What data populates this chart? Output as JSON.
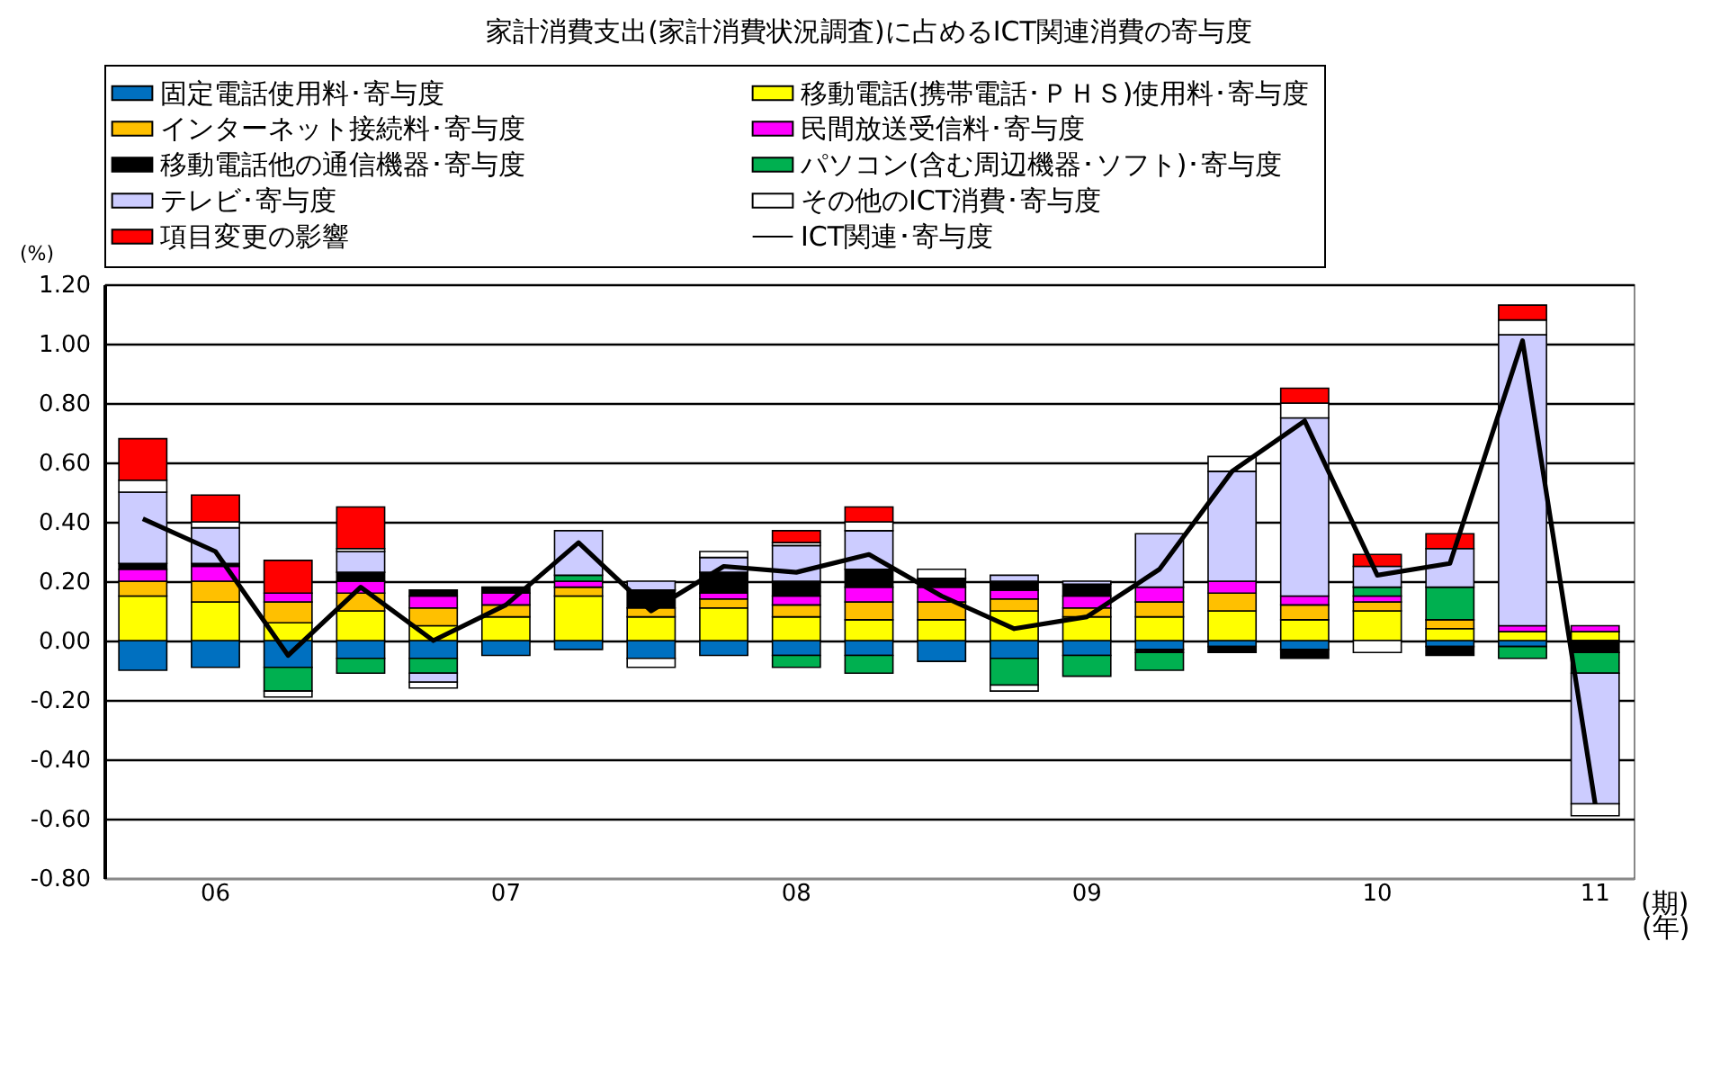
{
  "chart_data": {
    "type": "bar",
    "stacked": true,
    "title": "家計消費支出(家計消費状況調査)に占めるICT関連消費の寄与度",
    "ylabel": "(%)",
    "xlabel": "(年)",
    "annotations": [
      "(期)"
    ],
    "categories": [
      null,
      "06",
      null,
      null,
      null,
      "07",
      null,
      null,
      null,
      "08",
      null,
      null,
      null,
      "09",
      null,
      null,
      null,
      "10",
      null,
      null,
      "11"
    ],
    "ylim": [
      -0.8,
      1.2
    ],
    "yticks": [
      {
        "value": -0.8,
        "label": "-0.80"
      },
      {
        "value": -0.6,
        "label": "-0.60"
      },
      {
        "value": -0.4,
        "label": "-0.40"
      },
      {
        "value": -0.2,
        "label": "-0.20"
      },
      {
        "value": 0,
        "label": "0.00"
      },
      {
        "value": 0.2,
        "label": "0.20"
      },
      {
        "value": 0.4,
        "label": "0.40"
      },
      {
        "value": 0.6,
        "label": "0.60"
      },
      {
        "value": 0.8,
        "label": "0.80"
      },
      {
        "value": 1.0,
        "label": "1.00"
      },
      {
        "value": 1.2,
        "label": "1.20"
      }
    ],
    "grid": "y",
    "legend": "top",
    "series": [
      {
        "name": "固定電話使用料･寄与度",
        "color": "#0070c0",
        "values": [
          -0.1,
          -0.09,
          -0.09,
          -0.06,
          -0.06,
          -0.05,
          -0.03,
          -0.06,
          -0.05,
          -0.05,
          -0.05,
          -0.07,
          -0.06,
          -0.05,
          -0.03,
          -0.02,
          -0.03,
          0,
          -0.02,
          -0.02,
          0
        ]
      },
      {
        "name": "移動電話(携帯電話･ＰＨＳ)使用料･寄与度",
        "color": "#ffff00",
        "values": [
          0.15,
          0.13,
          0.06,
          0.1,
          0.05,
          0.08,
          0.15,
          0.08,
          0.11,
          0.08,
          0.07,
          0.07,
          0.1,
          0.08,
          0.08,
          0.1,
          0.07,
          0.1,
          0.04,
          0.03,
          0.03
        ]
      },
      {
        "name": "インターネット接続料･寄与度",
        "color": "#ffc000",
        "values": [
          0.05,
          0.07,
          0.07,
          0.06,
          0.06,
          0.04,
          0.03,
          0.03,
          0.03,
          0.04,
          0.06,
          0.06,
          0.04,
          0.03,
          0.05,
          0.06,
          0.05,
          0.03,
          0.03,
          0,
          0
        ]
      },
      {
        "name": "民間放送受信料･寄与度",
        "color": "#ff00ff",
        "values": [
          0.04,
          0.05,
          0.03,
          0.04,
          0.04,
          0.04,
          0.02,
          0,
          0.02,
          0.03,
          0.05,
          0.05,
          0.03,
          0.04,
          0.05,
          0.04,
          0.03,
          0.02,
          0,
          0.02,
          0.02
        ]
      },
      {
        "name": "移動電話他の通信機器･寄与度",
        "color": "#000000",
        "values": [
          0.02,
          0.01,
          0,
          0.03,
          0.02,
          0.02,
          0,
          0.06,
          0.07,
          0.05,
          0.06,
          0.03,
          0.03,
          0.04,
          -0.01,
          -0.02,
          -0.03,
          0,
          -0.03,
          0,
          -0.04
        ]
      },
      {
        "name": "パソコン(含む周辺機器･ソフト)･寄与度",
        "color": "#00b050",
        "values": [
          0,
          0,
          -0.08,
          -0.05,
          -0.05,
          0,
          0.02,
          0,
          0,
          -0.04,
          -0.06,
          0,
          -0.09,
          -0.07,
          -0.06,
          0,
          0,
          0.03,
          0.11,
          -0.04,
          -0.07
        ]
      },
      {
        "name": "テレビ･寄与度",
        "color": "#ccccff",
        "values": [
          0.24,
          0.12,
          0,
          0.07,
          -0.03,
          0,
          0.15,
          0.03,
          0.05,
          0.12,
          0.13,
          0,
          0.02,
          0.01,
          0.18,
          0.37,
          0.6,
          0.07,
          0.13,
          0.98,
          -0.44
        ]
      },
      {
        "name": "その他のICT消費･寄与度",
        "color": "#ffffff",
        "values": [
          0.04,
          0.02,
          -0.02,
          0.01,
          -0.02,
          0,
          0,
          -0.03,
          0.02,
          0.01,
          0.03,
          0.03,
          -0.02,
          0,
          0,
          0.05,
          0.05,
          -0.04,
          0,
          0.05,
          -0.04
        ]
      },
      {
        "name": "項目変更の影響",
        "color": "#ff0000",
        "values": [
          0.14,
          0.09,
          0.11,
          0.14,
          0,
          0,
          0,
          0,
          0,
          0.04,
          0.05,
          0,
          0,
          0,
          0,
          0,
          0.05,
          0.04,
          0.05,
          0.05,
          0
        ]
      },
      {
        "name": "ICT関連･寄与度",
        "type": "line",
        "color": "#000000",
        "values": [
          0.41,
          0.3,
          -0.05,
          0.18,
          0.0,
          0.12,
          0.33,
          0.1,
          0.25,
          0.23,
          0.29,
          0.15,
          0.04,
          0.08,
          0.24,
          0.57,
          0.74,
          0.22,
          0.26,
          1.01,
          -0.55
        ]
      }
    ]
  }
}
